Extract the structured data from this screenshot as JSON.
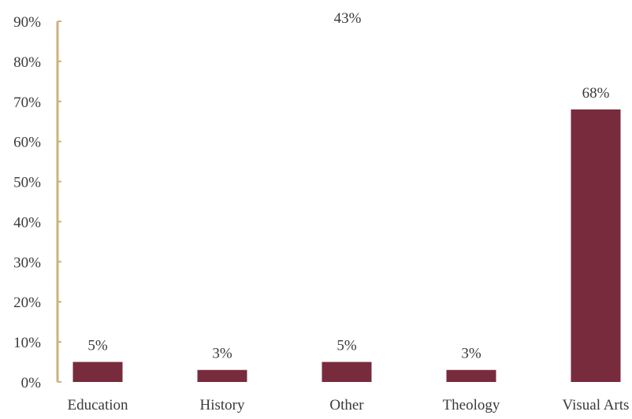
{
  "chart_data": {
    "type": "bar",
    "categories": [
      "Education",
      "History",
      "Other",
      "Theology",
      "Visual Arts"
    ],
    "values": [
      5,
      3,
      5,
      3,
      68
    ],
    "data_labels": [
      "5%",
      "3%",
      "5%",
      "3%",
      "68%"
    ],
    "ylim": [
      0,
      90
    ],
    "yticks": [
      "0%",
      "10%",
      "20%",
      "30%",
      "40%",
      "50%",
      "60%",
      "70%",
      "80%",
      "90%"
    ],
    "annotations": [
      "43%"
    ],
    "title": "",
    "xlabel": "",
    "ylabel": "",
    "grid": false,
    "legend": "none",
    "colors": {
      "bar": "#772b3d",
      "axis": "#cdb27c"
    }
  }
}
